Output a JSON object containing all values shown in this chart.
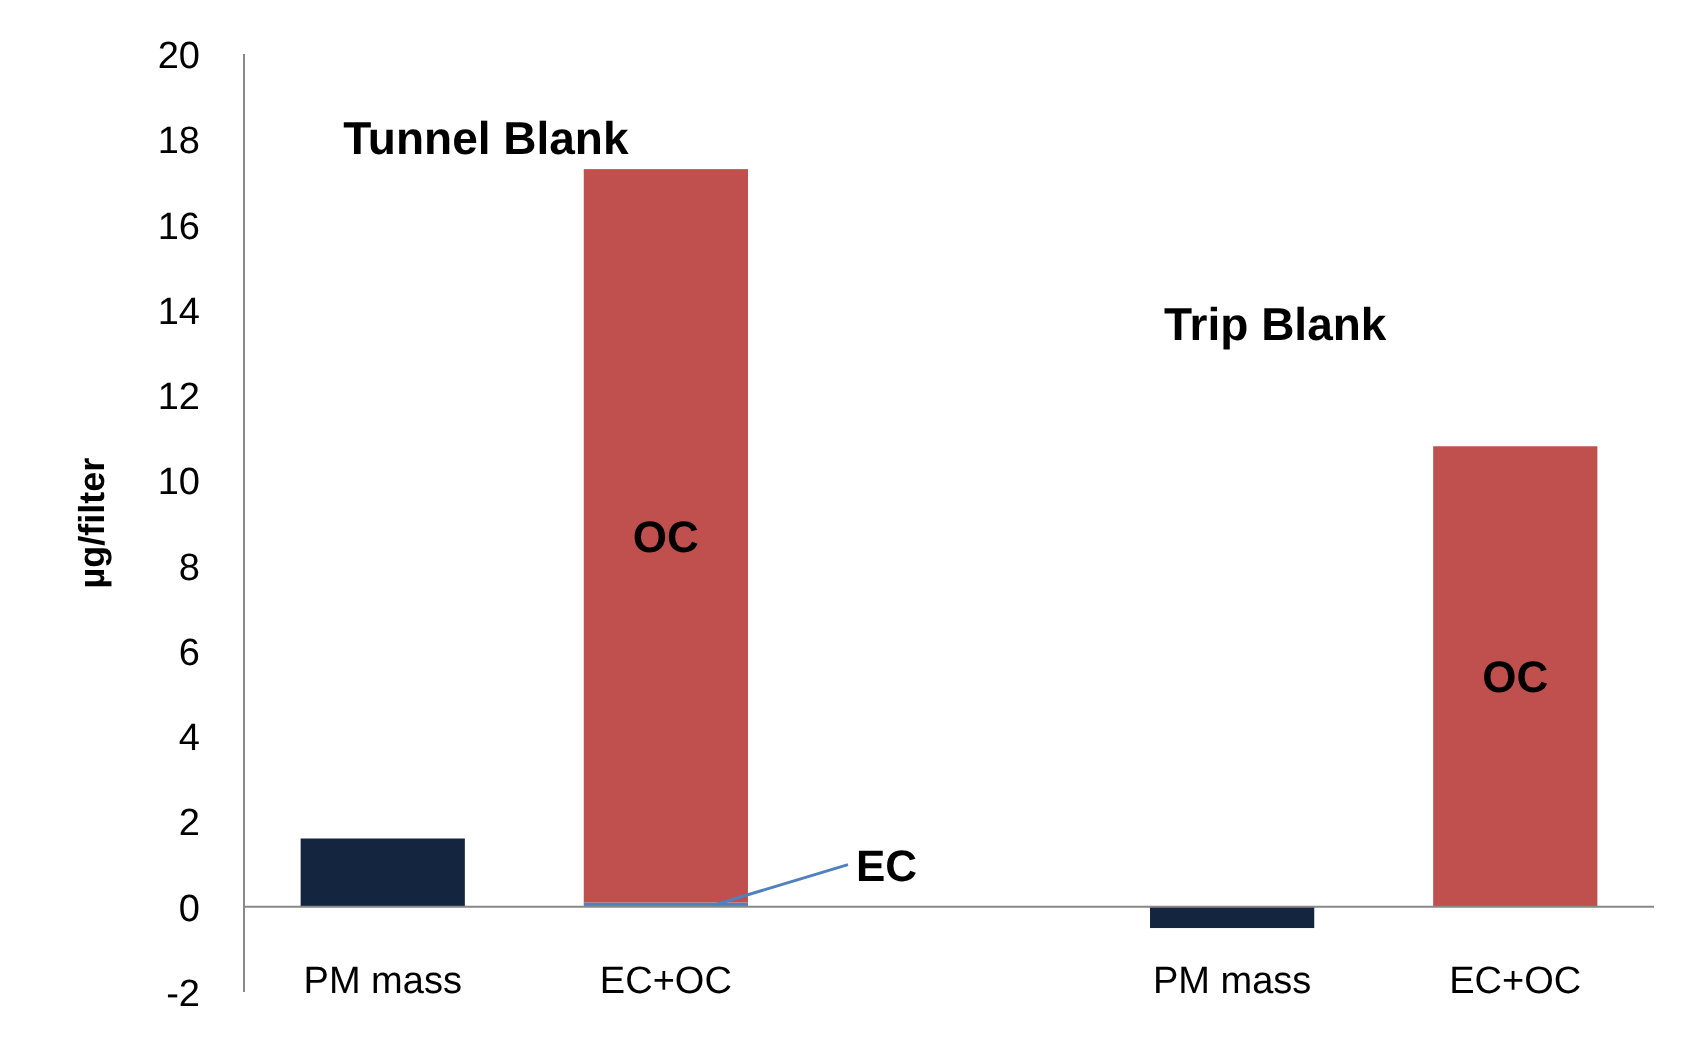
{
  "chart_data": {
    "type": "bar",
    "stacked": true,
    "ylabel": "µg/filter",
    "categories": [
      "PM mass",
      "EC+OC",
      null,
      "PM mass",
      "EC+OC"
    ],
    "series": [
      {
        "color": "#14263f",
        "values": [
          1.6,
          null,
          null,
          -0.5,
          null
        ]
      },
      {
        "name": "EC",
        "color": "#4f81bd",
        "values": [
          null,
          0.1,
          null,
          null,
          null
        ]
      },
      {
        "name": "OC",
        "color": "#c0504d",
        "values": [
          null,
          17.2,
          null,
          null,
          10.8
        ]
      }
    ],
    "ylim": [
      -2,
      20
    ],
    "yticks": [
      -2,
      0,
      2,
      4,
      6,
      8,
      10,
      12,
      14,
      16,
      18,
      20
    ],
    "grid": false,
    "annotations": [
      "Tunnel Blank",
      "Trip Blank"
    ]
  }
}
